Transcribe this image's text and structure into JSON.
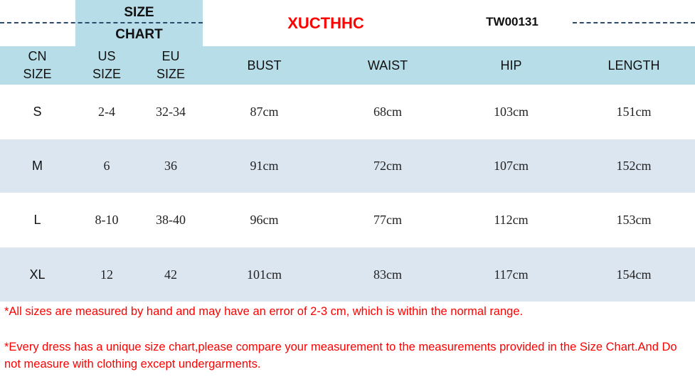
{
  "title": {
    "line1": "SIZE",
    "line2": "CHART"
  },
  "brand": "XUCTHHC",
  "product_code": "TW00131",
  "colors": {
    "header_bg": "#b7dde8",
    "stripe_bg": "#dce6f1",
    "brand": "#ff0000",
    "note": "#ff0000"
  },
  "table": {
    "headers": [
      {
        "line1": "CN",
        "line2": "SIZE"
      },
      {
        "line1": "US",
        "line2": "SIZE"
      },
      {
        "line1": "EU",
        "line2": "SIZE"
      },
      {
        "line1": "BUST",
        "line2": ""
      },
      {
        "line1": "WAIST",
        "line2": ""
      },
      {
        "line1": "HIP",
        "line2": ""
      },
      {
        "line1": "LENGTH",
        "line2": ""
      }
    ],
    "rows": [
      [
        "S",
        "2-4",
        "32-34",
        "87cm",
        "68cm",
        "103cm",
        "151cm"
      ],
      [
        "M",
        "6",
        "36",
        "91cm",
        "72cm",
        "107cm",
        "152cm"
      ],
      [
        "L",
        "8-10",
        "38-40",
        "96cm",
        "77cm",
        "112cm",
        "153cm"
      ],
      [
        "XL",
        "12",
        "42",
        "101cm",
        "83cm",
        "117cm",
        "154cm"
      ]
    ]
  },
  "notes": [
    "*All sizes are measured by hand and may have an error of 2-3 cm, which is within the normal range.",
    "*Every dress has a unique size chart,please compare your measurement to the measurements provided in the Size Chart.And Do not measure with clothing except undergarments."
  ]
}
